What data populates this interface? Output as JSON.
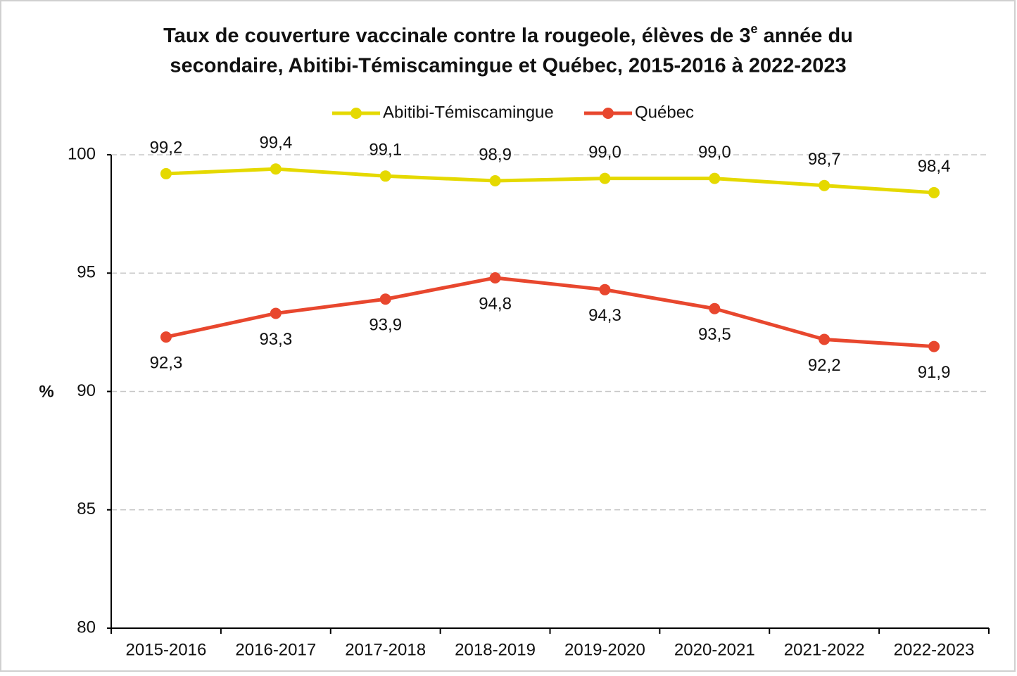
{
  "chart_data": {
    "type": "line",
    "title": [
      "Taux de couverture vaccinale contre la rougeole, élèves de 3",
      "e",
      " année du",
      "secondaire, Abitibi-Témiscamingue et Québec, 2015-2016  à 2022-2023"
    ],
    "ylabel": "%",
    "categories": [
      "2015-2016",
      "2016-2017",
      "2017-2018",
      "2018-2019",
      "2019-2020",
      "2020-2021",
      "2021-2022",
      "2022-2023"
    ],
    "series": [
      {
        "name": "Abitibi-Témiscamingue",
        "color": "#e5d900",
        "values": [
          99.2,
          99.4,
          99.1,
          98.9,
          99.0,
          99.0,
          98.7,
          98.4
        ],
        "value_labels": [
          "99,2",
          "99,4",
          "99,1",
          "98,9",
          "99,0",
          "99,0",
          "98,7",
          "98,4"
        ]
      },
      {
        "name": "Québec",
        "color": "#e8472e",
        "values": [
          92.3,
          93.3,
          93.9,
          94.8,
          94.3,
          93.5,
          92.2,
          91.9
        ],
        "value_labels": [
          "92,3",
          "93,3",
          "93,9",
          "94,8",
          "94,3",
          "93,5",
          "92,2",
          "91,9"
        ]
      }
    ],
    "ylim": [
      80,
      100
    ],
    "yticks": [
      80,
      85,
      90,
      95,
      100
    ],
    "grid": true,
    "legend": "top"
  }
}
